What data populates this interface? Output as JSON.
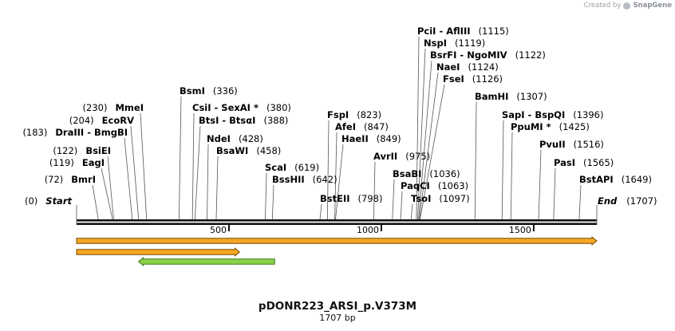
{
  "credit": {
    "prefix": "Created by",
    "brand": "SnapGene"
  },
  "title": "pDONR223_ARSI_p.V373M",
  "subtitle": "1707 bp",
  "map": {
    "length": 1707,
    "ticks": [
      500,
      1000,
      1500
    ],
    "start_label": "Start",
    "start_pos": "(0)",
    "end_label": "End",
    "end_pos": "(1707)"
  },
  "sites": [
    {
      "name": "BmrI",
      "pos": "(72)",
      "bp": 72,
      "side": "left",
      "row": 0
    },
    {
      "name": "EagI",
      "pos": "(119)",
      "bp": 119,
      "side": "left",
      "row": 1
    },
    {
      "name": "BsiEI",
      "pos": "(122)",
      "bp": 122,
      "side": "left",
      "row": 2
    },
    {
      "name": "DraIII  - BmgBI",
      "pos": "(183)",
      "bp": 183,
      "side": "left",
      "row": 3
    },
    {
      "name": "EcoRV",
      "pos": "(204)",
      "bp": 204,
      "side": "left",
      "row": 4
    },
    {
      "name": "MmeI",
      "pos": "(230)",
      "bp": 230,
      "side": "left",
      "row": 5
    },
    {
      "name": "BsmI",
      "pos": "(336)",
      "bp": 336,
      "side": "right",
      "row": 6
    },
    {
      "name": "CsiI  - SexAI *",
      "pos": "(380)",
      "bp": 380,
      "side": "right",
      "row": 7
    },
    {
      "name": "BtsI  - BtsαI",
      "pos": "(388)",
      "bp": 388,
      "side": "right",
      "row": 8
    },
    {
      "name": "NdeI",
      "pos": "(428)",
      "bp": 428,
      "side": "right",
      "row": 9
    },
    {
      "name": "BsaWI",
      "pos": "(458)",
      "bp": 458,
      "side": "right",
      "row": 10
    },
    {
      "name": "ScaI",
      "pos": "(619)",
      "bp": 619,
      "side": "right",
      "row": 11
    },
    {
      "name": "BssHII",
      "pos": "(642)",
      "bp": 642,
      "side": "right",
      "row": 12
    },
    {
      "name": "BstEII",
      "pos": "(798)",
      "bp": 798,
      "side": "right",
      "row": 13
    },
    {
      "name": "FspI",
      "pos": "(823)",
      "bp": 823,
      "side": "right",
      "row": 14
    },
    {
      "name": "AfeI",
      "pos": "(847)",
      "bp": 847,
      "side": "right",
      "row": 15
    },
    {
      "name": "HaeII",
      "pos": "(849)",
      "bp": 849,
      "side": "right",
      "row": 16
    },
    {
      "name": "AvrII",
      "pos": "(975)",
      "bp": 975,
      "side": "right",
      "row": 17
    },
    {
      "name": "BsaBI",
      "pos": "(1036)",
      "bp": 1036,
      "side": "right",
      "row": 18
    },
    {
      "name": "PaqCI",
      "pos": "(1063)",
      "bp": 1063,
      "side": "right",
      "row": 19
    },
    {
      "name": "TsoI",
      "pos": "(1097)",
      "bp": 1097,
      "side": "right",
      "row": 20
    },
    {
      "name": "PciI  - AflIII",
      "pos": "(1115)",
      "bp": 1115,
      "side": "right",
      "row": 21
    },
    {
      "name": "NspI",
      "pos": "(1119)",
      "bp": 1119,
      "side": "right",
      "row": 22
    },
    {
      "name": "BsrFI  - NgoMIV",
      "pos": "(1122)",
      "bp": 1122,
      "side": "right",
      "row": 23
    },
    {
      "name": "NaeI",
      "pos": "(1124)",
      "bp": 1124,
      "side": "right",
      "row": 24
    },
    {
      "name": "FseI",
      "pos": "(1126)",
      "bp": 1126,
      "side": "right",
      "row": 25
    },
    {
      "name": "BamHI",
      "pos": "(1307)",
      "bp": 1307,
      "side": "right",
      "row": 26
    },
    {
      "name": "SapI  - BspQI",
      "pos": "(1396)",
      "bp": 1396,
      "side": "right",
      "row": 27
    },
    {
      "name": "PpuMI *",
      "pos": "(1425)",
      "bp": 1425,
      "side": "right",
      "row": 28
    },
    {
      "name": "PvuII",
      "pos": "(1516)",
      "bp": 1516,
      "side": "right",
      "row": 29
    },
    {
      "name": "PasI",
      "pos": "(1565)",
      "bp": 1565,
      "side": "right",
      "row": 30
    },
    {
      "name": "BstAPI",
      "pos": "(1649)",
      "bp": 1649,
      "side": "right",
      "row": 31
    }
  ],
  "features": [
    {
      "name": "orange-feature-long",
      "start": 0,
      "end": 1707,
      "direction": "forward",
      "fill": "#f5a623",
      "stroke": "#7a4a00"
    },
    {
      "name": "orange-feature-short",
      "start": 0,
      "end": 535,
      "direction": "forward",
      "fill": "#f5a623",
      "stroke": "#7a4a00"
    },
    {
      "name": "green-feature",
      "start": 203,
      "end": 650,
      "direction": "reverse",
      "fill": "#8bd14a",
      "stroke": "#3f7a1c"
    }
  ]
}
